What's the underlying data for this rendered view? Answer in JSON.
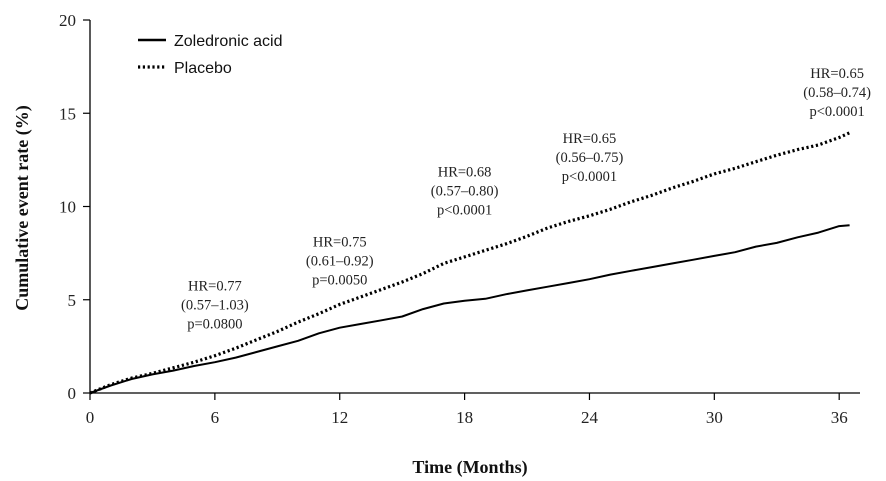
{
  "chart_data": {
    "type": "line",
    "title": "",
    "xlabel": "Time (Months)",
    "ylabel": "Cumulative  event rate (%)",
    "xlim": [
      0,
      37
    ],
    "ylim": [
      0,
      20
    ],
    "x_ticks": [
      0,
      6,
      12,
      18,
      24,
      30,
      36
    ],
    "y_ticks": [
      0,
      5,
      10,
      15,
      20
    ],
    "grid": false,
    "legend_position": "top-left",
    "series": [
      {
        "name": "Zoledronic acid",
        "style": "solid",
        "color": "#000000",
        "x": [
          0,
          1,
          2,
          3,
          4,
          5,
          6,
          7,
          8,
          9,
          10,
          11,
          12,
          13,
          14,
          15,
          16,
          17,
          18,
          19,
          20,
          21,
          22,
          23,
          24,
          25,
          26,
          27,
          28,
          29,
          30,
          31,
          32,
          33,
          34,
          35,
          36,
          36.5
        ],
        "values": [
          0,
          0.4,
          0.75,
          1.0,
          1.2,
          1.45,
          1.65,
          1.9,
          2.2,
          2.5,
          2.8,
          3.2,
          3.5,
          3.7,
          3.9,
          4.1,
          4.5,
          4.8,
          4.95,
          5.05,
          5.3,
          5.5,
          5.7,
          5.9,
          6.1,
          6.35,
          6.55,
          6.75,
          6.95,
          7.15,
          7.35,
          7.55,
          7.85,
          8.05,
          8.35,
          8.6,
          8.95,
          9.0
        ]
      },
      {
        "name": "Placebo",
        "style": "dotted",
        "color": "#000000",
        "x": [
          0,
          1,
          2,
          3,
          4,
          5,
          6,
          7,
          8,
          9,
          10,
          11,
          12,
          13,
          14,
          15,
          16,
          17,
          18,
          19,
          20,
          21,
          22,
          23,
          24,
          25,
          26,
          27,
          28,
          29,
          30,
          31,
          32,
          33,
          34,
          35,
          36,
          36.5
        ],
        "values": [
          0,
          0.45,
          0.8,
          1.05,
          1.35,
          1.65,
          2.0,
          2.4,
          2.85,
          3.3,
          3.8,
          4.25,
          4.75,
          5.15,
          5.55,
          5.95,
          6.4,
          6.95,
          7.3,
          7.65,
          8.0,
          8.4,
          8.85,
          9.2,
          9.5,
          9.85,
          10.25,
          10.6,
          11.0,
          11.35,
          11.75,
          12.05,
          12.4,
          12.75,
          13.05,
          13.3,
          13.7,
          13.95
        ]
      }
    ],
    "annotations": [
      {
        "x": 6,
        "y": 5.5,
        "lines": [
          "HR=0.77",
          "(0.57–1.03)",
          "p=0.0800"
        ]
      },
      {
        "x": 12,
        "y": 7.85,
        "lines": [
          "HR=0.75",
          "(0.61–0.92)",
          "p=0.0050"
        ]
      },
      {
        "x": 18,
        "y": 11.6,
        "lines": [
          "HR=0.68",
          "(0.57–0.80)",
          "p<0.0001"
        ]
      },
      {
        "x": 24,
        "y": 13.4,
        "lines": [
          "HR=0.65",
          "(0.56–0.75)",
          "p<0.0001"
        ]
      },
      {
        "x": 35.9,
        "y": 16.9,
        "lines": [
          "HR=0.65",
          "(0.58–0.74)",
          "p<0.0001"
        ]
      }
    ]
  }
}
